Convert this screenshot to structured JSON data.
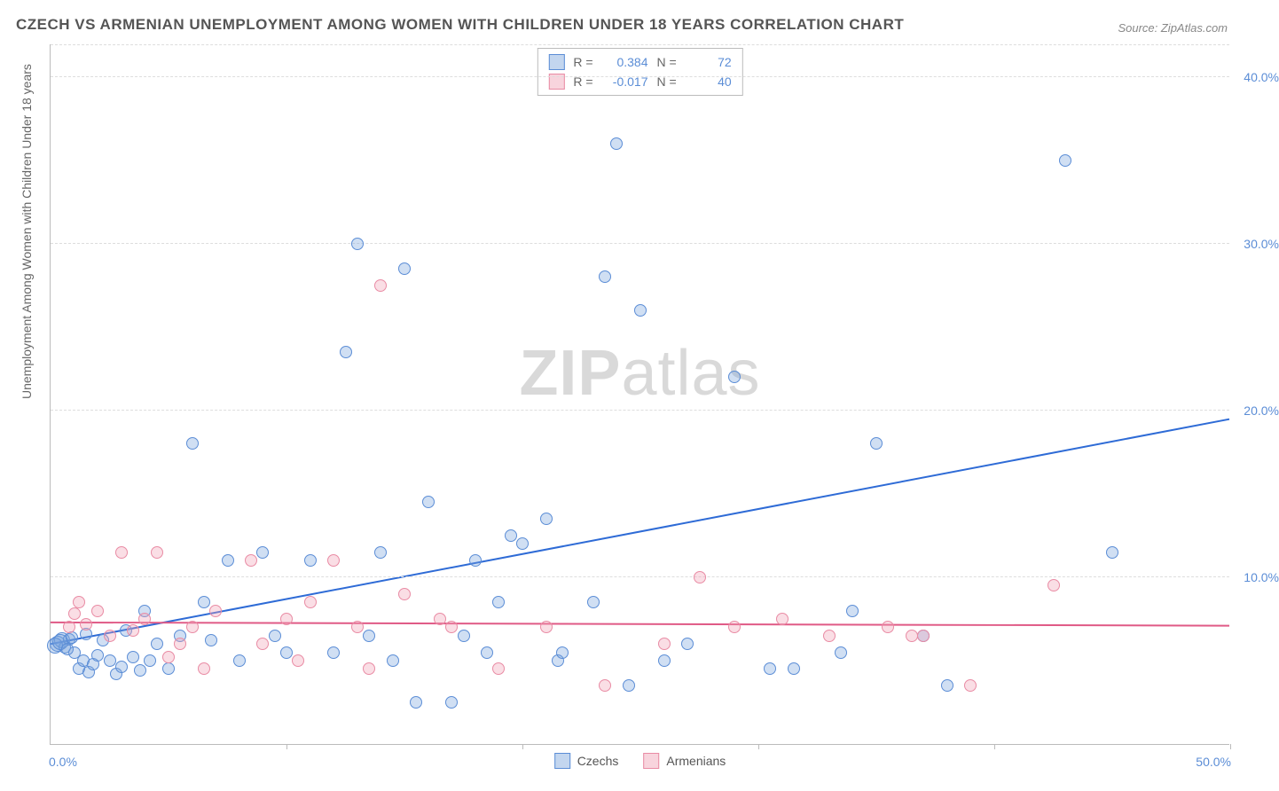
{
  "title": "CZECH VS ARMENIAN UNEMPLOYMENT AMONG WOMEN WITH CHILDREN UNDER 18 YEARS CORRELATION CHART",
  "source": "Source: ZipAtlas.com",
  "ylabel": "Unemployment Among Women with Children Under 18 years",
  "watermark_a": "ZIP",
  "watermark_b": "atlas",
  "chart": {
    "type": "scatter",
    "xlim": [
      0,
      50
    ],
    "ylim": [
      0,
      42
    ],
    "xticks_pct": [
      0,
      10,
      20,
      30,
      40,
      50
    ],
    "yticks": [
      10,
      20,
      30,
      40
    ],
    "ytick_labels": [
      "10.0%",
      "20.0%",
      "30.0%",
      "40.0%"
    ],
    "x_left_label": "0.0%",
    "x_right_label": "50.0%",
    "grid_color": "#dddddd",
    "axis_color": "#bbbbbb",
    "label_color": "#5b8dd6",
    "background_color": "#ffffff",
    "marker_size": 14,
    "series": [
      {
        "name": "Czechs",
        "color_fill": "rgba(121,163,220,0.35)",
        "color_stroke": "#5b8dd6",
        "R": "0.384",
        "N": "72",
        "trend": {
          "x1": 0,
          "y1": 6.0,
          "x2": 50,
          "y2": 19.5,
          "stroke": "#2e6bd6",
          "width": 2
        },
        "points": [
          [
            0.3,
            6.0
          ],
          [
            0.5,
            6.2
          ],
          [
            0.6,
            5.8
          ],
          [
            0.8,
            6.3
          ],
          [
            1.0,
            5.5
          ],
          [
            1.2,
            4.5
          ],
          [
            1.4,
            5.0
          ],
          [
            1.5,
            6.6
          ],
          [
            1.6,
            4.3
          ],
          [
            1.8,
            4.8
          ],
          [
            2.0,
            5.3
          ],
          [
            2.2,
            6.2
          ],
          [
            2.5,
            5.0
          ],
          [
            2.8,
            4.2
          ],
          [
            3.0,
            4.6
          ],
          [
            3.2,
            6.8
          ],
          [
            3.5,
            5.2
          ],
          [
            3.8,
            4.4
          ],
          [
            4.0,
            8.0
          ],
          [
            4.2,
            5.0
          ],
          [
            4.5,
            6.0
          ],
          [
            5.0,
            4.5
          ],
          [
            5.5,
            6.5
          ],
          [
            6.0,
            18.0
          ],
          [
            6.5,
            8.5
          ],
          [
            6.8,
            6.2
          ],
          [
            7.5,
            11.0
          ],
          [
            8.0,
            5.0
          ],
          [
            9.0,
            11.5
          ],
          [
            9.5,
            6.5
          ],
          [
            10.0,
            5.5
          ],
          [
            11.0,
            11.0
          ],
          [
            12.0,
            5.5
          ],
          [
            12.5,
            23.5
          ],
          [
            13.0,
            30.0
          ],
          [
            13.5,
            6.5
          ],
          [
            14.0,
            11.5
          ],
          [
            14.5,
            5.0
          ],
          [
            15.0,
            28.5
          ],
          [
            15.5,
            2.5
          ],
          [
            16.0,
            14.5
          ],
          [
            17.0,
            2.5
          ],
          [
            17.5,
            6.5
          ],
          [
            18.0,
            11.0
          ],
          [
            18.5,
            5.5
          ],
          [
            19.0,
            8.5
          ],
          [
            19.5,
            12.5
          ],
          [
            20.0,
            12.0
          ],
          [
            21.0,
            13.5
          ],
          [
            21.5,
            5.0
          ],
          [
            21.7,
            5.5
          ],
          [
            23.0,
            8.5
          ],
          [
            23.5,
            28.0
          ],
          [
            24.0,
            36.0
          ],
          [
            24.5,
            3.5
          ],
          [
            25.0,
            26.0
          ],
          [
            26.0,
            5.0
          ],
          [
            27.0,
            6.0
          ],
          [
            29.0,
            22.0
          ],
          [
            30.5,
            4.5
          ],
          [
            31.5,
            4.5
          ],
          [
            33.5,
            5.5
          ],
          [
            34.0,
            8.0
          ],
          [
            35.0,
            18.0
          ],
          [
            37.0,
            6.5
          ],
          [
            38.0,
            3.5
          ],
          [
            43.0,
            35.0
          ],
          [
            45.0,
            11.5
          ],
          [
            0.2,
            5.9
          ],
          [
            0.4,
            6.1
          ],
          [
            0.7,
            5.7
          ],
          [
            0.9,
            6.4
          ]
        ]
      },
      {
        "name": "Armenians",
        "color_fill": "rgba(240,160,180,0.35)",
        "color_stroke": "#e98ba4",
        "R": "-0.017",
        "N": "40",
        "trend": {
          "x1": 0,
          "y1": 7.3,
          "x2": 50,
          "y2": 7.1,
          "stroke": "#e05a86",
          "width": 2
        },
        "points": [
          [
            0.8,
            7.0
          ],
          [
            1.2,
            8.5
          ],
          [
            1.5,
            7.2
          ],
          [
            2.0,
            8.0
          ],
          [
            2.5,
            6.5
          ],
          [
            3.0,
            11.5
          ],
          [
            3.5,
            6.8
          ],
          [
            4.0,
            7.5
          ],
          [
            4.5,
            11.5
          ],
          [
            5.0,
            5.2
          ],
          [
            5.5,
            6.0
          ],
          [
            6.0,
            7.0
          ],
          [
            6.5,
            4.5
          ],
          [
            7.0,
            8.0
          ],
          [
            8.5,
            11.0
          ],
          [
            9.0,
            6.0
          ],
          [
            10.0,
            7.5
          ],
          [
            10.5,
            5.0
          ],
          [
            11.0,
            8.5
          ],
          [
            12.0,
            11.0
          ],
          [
            13.0,
            7.0
          ],
          [
            13.5,
            4.5
          ],
          [
            14.0,
            27.5
          ],
          [
            15.0,
            9.0
          ],
          [
            16.5,
            7.5
          ],
          [
            17.0,
            7.0
          ],
          [
            19.0,
            4.5
          ],
          [
            21.0,
            7.0
          ],
          [
            23.5,
            3.5
          ],
          [
            26.0,
            6.0
          ],
          [
            27.5,
            10.0
          ],
          [
            29.0,
            7.0
          ],
          [
            31.0,
            7.5
          ],
          [
            33.0,
            6.5
          ],
          [
            35.5,
            7.0
          ],
          [
            36.5,
            6.5
          ],
          [
            37.0,
            6.5
          ],
          [
            39.0,
            3.5
          ],
          [
            42.5,
            9.5
          ],
          [
            1.0,
            7.8
          ]
        ]
      }
    ]
  },
  "legend": [
    {
      "label": "Czechs",
      "swatch": "blue"
    },
    {
      "label": "Armenians",
      "swatch": "pink"
    }
  ],
  "stats_labels": {
    "R": "R =",
    "N": "N ="
  }
}
